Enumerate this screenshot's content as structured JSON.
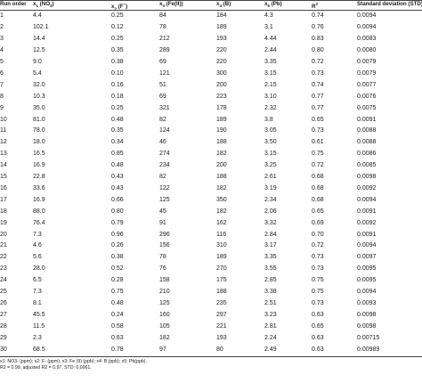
{
  "headers": [
    "Run order",
    "x1 (NO3-)",
    "x2 (F-)",
    "x3 (Fe(II))",
    "x4 (B)",
    "x5 (Pb)",
    "R2",
    "Standard deviation (STD)"
  ],
  "header_parts": {
    "h1": {
      "pre": "x",
      "sub": "1",
      "post": " (NO",
      "sub2": "3",
      "post2": ")"
    },
    "h2": {
      "pre": "x",
      "sub": "2",
      "post": " (F",
      "sup": "−",
      "post2": ")"
    },
    "h3": {
      "pre": "x",
      "sub": "3",
      "post": " (Fe(II))"
    },
    "h4": {
      "pre": "x",
      "sub": "4",
      "post": " (B)"
    },
    "h5": {
      "pre": "x",
      "sub": "5",
      "post": " (Pb)"
    },
    "h6": {
      "pre": "R",
      "sup": "2"
    },
    "h0": "Run order",
    "h7": "Standard deviation (STD)"
  },
  "rows": [
    [
      "1",
      "4.4",
      "0.25",
      "84",
      "184",
      "4.3",
      "0.74",
      "0.0094"
    ],
    [
      "2",
      "102.1",
      "0.12",
      "78",
      "189",
      "3.1",
      "0.76",
      "0.0094"
    ],
    [
      "3",
      "14.4",
      "0.25",
      "212",
      "193",
      "4.44",
      "0.83",
      "0.0083"
    ],
    [
      "4",
      "12.5",
      "0.35",
      "289",
      "220",
      "2.44",
      "0.80",
      "0.0080"
    ],
    [
      "5",
      "9.0",
      "0.38",
      "69",
      "220",
      "3.35",
      "0.72",
      "0.0079"
    ],
    [
      "6",
      "5.4",
      "0.10",
      "121",
      "300",
      "3.15",
      "0.73",
      "0.0079"
    ],
    [
      "7",
      "32.0",
      "0.16",
      "51",
      "200",
      "2.15",
      "0.74",
      "0.0077"
    ],
    [
      "8",
      "10.3",
      "0.18",
      "69",
      "223",
      "3.10",
      "0.77",
      "0.0076"
    ],
    [
      "9",
      "35.0",
      "0.25",
      "321",
      "178",
      "2.32",
      "0.77",
      "0.0075"
    ],
    [
      "10",
      "81.0",
      "0.48",
      "82",
      "189",
      "3.8",
      "0.65",
      "0.0091"
    ],
    [
      "11",
      "78.0",
      "0.35",
      "124",
      "190",
      "3.05",
      "0.73",
      "0.0088"
    ],
    [
      "12",
      "18.0",
      "0.34",
      "46",
      "188",
      "3.50",
      "0.61",
      "0.0088"
    ],
    [
      "13",
      "16.5",
      "0.85",
      "274",
      "182",
      "3.15",
      "0.75",
      "0.0086"
    ],
    [
      "14",
      "16.9",
      "0.48",
      "234",
      "200",
      "3.25",
      "0.72",
      "0.0085"
    ],
    [
      "15",
      "22.8",
      "0.43",
      "82",
      "188",
      "2.61",
      "0.68",
      "0.0098"
    ],
    [
      "16",
      "33.6",
      "0.43",
      "122",
      "182",
      "3.19",
      "0.68",
      "0.0092"
    ],
    [
      "17",
      "16.9",
      "0.66",
      "125",
      "350",
      "2.34",
      "0.68",
      "0.0094"
    ],
    [
      "18",
      "88.0",
      "0.80",
      "45",
      "182",
      "2.06",
      "0.65",
      "0.0091"
    ],
    [
      "19",
      "76.4",
      "0.79",
      "91",
      "162",
      "3.32",
      "0.69",
      "0.0092"
    ],
    [
      "20",
      "7.3",
      "0.96",
      "296",
      "116",
      "2.84",
      "0.70",
      "0.0091"
    ],
    [
      "21",
      "4.6",
      "0.26",
      "156",
      "310",
      "3.17",
      "0.72",
      "0.0094"
    ],
    [
      "22",
      "5.6",
      "0.38",
      "78",
      "189",
      "3.35",
      "0.73",
      "0.0097"
    ],
    [
      "23",
      "28.0",
      "0.52",
      "76",
      "270",
      "3.55",
      "0.73",
      "0.0095"
    ],
    [
      "24",
      "6.5",
      "0.28",
      "158",
      "175",
      "2.85",
      "0.75",
      "0.0095"
    ],
    [
      "25",
      "7.3",
      "0.75",
      "210",
      "188",
      "3.38",
      "0.75",
      "0.0094"
    ],
    [
      "26",
      "8.1",
      "0.48",
      "125",
      "235",
      "2.51",
      "0.73",
      "0.0093"
    ],
    [
      "27",
      "45.5",
      "0.24",
      "160",
      "297",
      "3.23",
      "0.63",
      "0.0098"
    ],
    [
      "28",
      "11.5",
      "0.58",
      "105",
      "221",
      "2.81",
      "0.65",
      "0.0098"
    ],
    [
      "29",
      "2.3",
      "0.63",
      "182",
      "193",
      "2.24",
      "0.63",
      "0.00715"
    ],
    [
      "30",
      "68.5",
      "0.78",
      "97",
      "80",
      "2.49",
      "0.63",
      "0.00989"
    ]
  ],
  "footnote_line1": "x1: NO3- (ppm); x2: F- (ppm); x3: Fe (II) (ppb); x4: B (ppb); x5: Pb(ppb).",
  "footnote_line2": "R2 = 0.99, adjusted R2 = 0.97, STD: 0.0061."
}
